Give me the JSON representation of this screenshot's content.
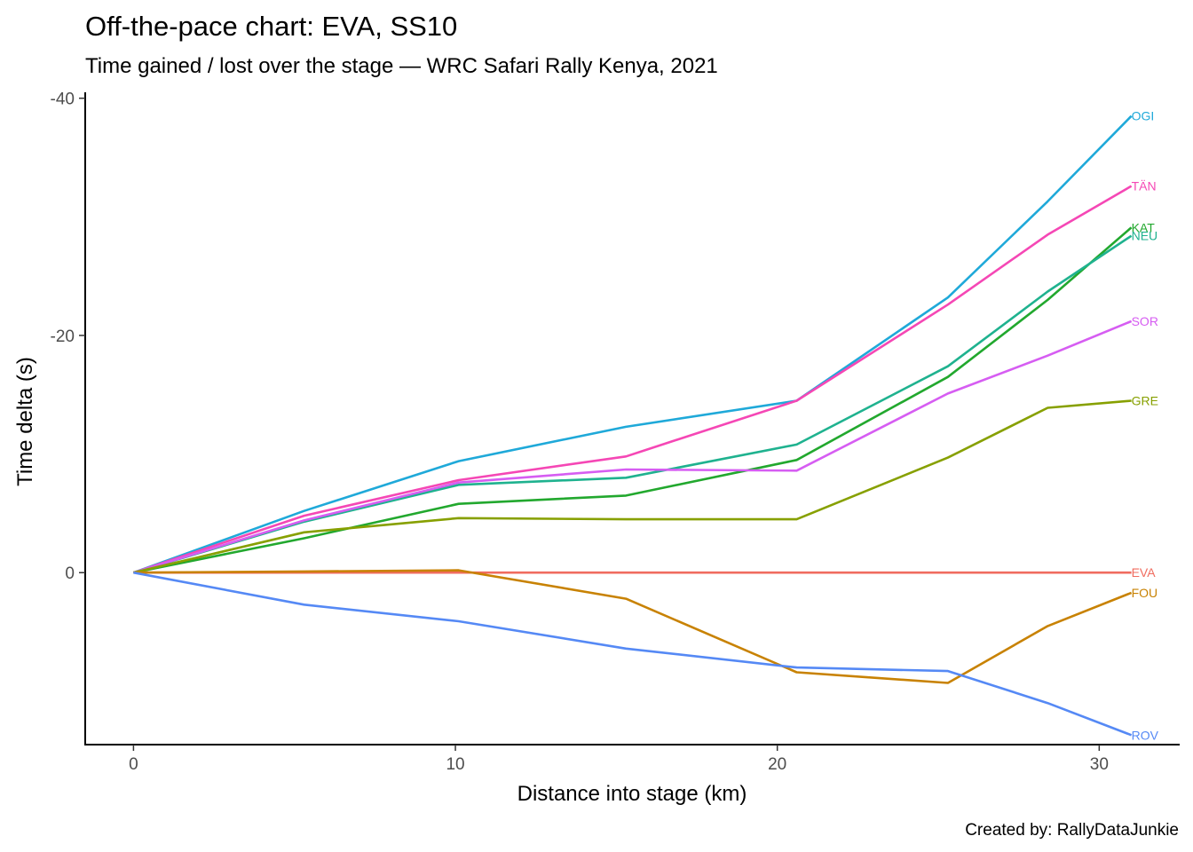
{
  "chart_data": {
    "type": "line",
    "title": "Off-the-pace chart: EVA, SS10",
    "subtitle": "Time gained / lost over the stage — WRC Safari Rally Kenya, 2021",
    "xlabel": "Distance into stage (km)",
    "ylabel": "Time delta (s)",
    "caption": "Created by: RallyDataJunkie",
    "xlim": [
      -1.5,
      32.5
    ],
    "ylim": [
      14.5,
      -40.5
    ],
    "y_reversed": true,
    "x_ticks": [
      0,
      10,
      20,
      30
    ],
    "x_tick_labels": [
      "0",
      "10",
      "20",
      "30"
    ],
    "y_ticks": [
      -40,
      -20,
      0
    ],
    "y_tick_labels": [
      "-40",
      "-20",
      "0"
    ],
    "grid": false,
    "legend": "none",
    "labels_at_line_ends": true,
    "x": [
      0,
      5.3,
      10.1,
      15.3,
      20.6,
      25.3,
      28.4,
      31
    ],
    "series": [
      {
        "name": "OGI",
        "color": "#1FA9D9",
        "values": [
          0,
          -5.2,
          -9.4,
          -12.3,
          -14.5,
          -23.2,
          -31.3,
          -38.5
        ]
      },
      {
        "name": "TÄN",
        "color": "#F547B5",
        "values": [
          0,
          -4.8,
          -7.8,
          -9.8,
          -14.5,
          -22.6,
          -28.5,
          -32.6
        ]
      },
      {
        "name": "KAT",
        "color": "#22A82E",
        "values": [
          0,
          -2.9,
          -5.8,
          -6.5,
          -9.5,
          -16.5,
          -23.0,
          -29.1
        ]
      },
      {
        "name": "NEU",
        "color": "#1FB28F",
        "values": [
          0,
          -4.3,
          -7.4,
          -8.0,
          -10.8,
          -17.4,
          -23.7,
          -28.4
        ]
      },
      {
        "name": "SOR",
        "color": "#D65DF2",
        "values": [
          0,
          -4.4,
          -7.6,
          -8.7,
          -8.6,
          -15.1,
          -18.3,
          -21.2
        ]
      },
      {
        "name": "GRE",
        "color": "#87A000",
        "values": [
          0,
          -3.4,
          -4.6,
          -4.5,
          -4.5,
          -9.7,
          -13.9,
          -14.5
        ]
      },
      {
        "name": "EVA",
        "color": "#F06C5F",
        "values": [
          0,
          0,
          0,
          0,
          0,
          0,
          0,
          0
        ]
      },
      {
        "name": "FOU",
        "color": "#C88203",
        "values": [
          0,
          -0.1,
          -0.2,
          2.2,
          8.4,
          9.3,
          4.5,
          1.7
        ]
      },
      {
        "name": "ROV",
        "color": "#5589F5",
        "values": [
          0,
          2.7,
          4.1,
          6.4,
          8.0,
          8.3,
          11.0,
          13.7
        ]
      }
    ]
  }
}
